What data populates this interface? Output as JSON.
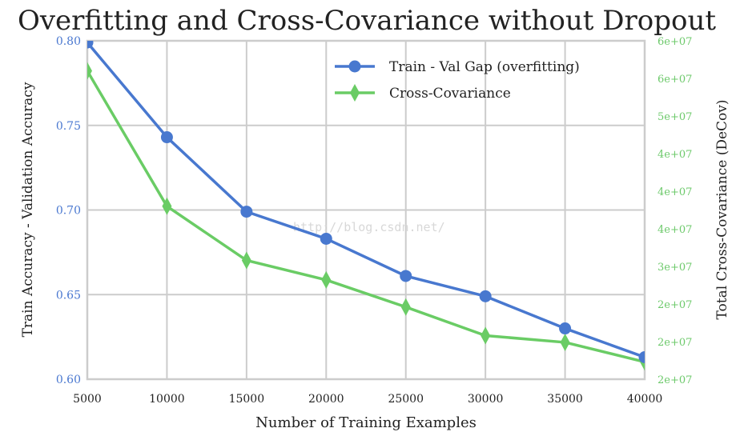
{
  "chart_data": {
    "type": "line",
    "title": "Overfitting and Cross-Covariance without Dropout",
    "xlabel": "Number of Training Examples",
    "ylabel": "Train Accuracy - Validation Accuracy",
    "ylabel_right": "Total Cross-Covariance (DeCov)",
    "x": [
      5000,
      10000,
      15000,
      20000,
      25000,
      30000,
      35000,
      40000
    ],
    "xlim": [
      5000,
      40000
    ],
    "ylim": [
      0.6,
      0.8
    ],
    "ylim_right": [
      15000000,
      60000000
    ],
    "xticks": [
      "5000",
      "10000",
      "15000",
      "20000",
      "25000",
      "30000",
      "35000",
      "40000"
    ],
    "yticks_left": [
      "0.60",
      "0.65",
      "0.70",
      "0.75",
      "0.80"
    ],
    "yticks_right": [
      "2e+07",
      "2e+07",
      "2e+07",
      "3e+07",
      "4e+07",
      "4e+07",
      "4e+07",
      "5e+07",
      "6e+07",
      "6e+07"
    ],
    "grid": true,
    "legend_position": "top-right",
    "series": [
      {
        "name": "Train - Val Gap (overfitting)",
        "axis": "left",
        "marker": "circle",
        "color": "#4878cf",
        "values": [
          0.799,
          0.743,
          0.699,
          0.683,
          0.661,
          0.649,
          0.63,
          0.613
        ]
      },
      {
        "name": "Cross-Covariance",
        "axis": "right",
        "marker": "diamond",
        "color": "#6acc65",
        "values": [
          56000000,
          38000000,
          30800000,
          28200000,
          24600000,
          20800000,
          19900000,
          17300000
        ]
      }
    ],
    "watermark": "http://blog.csdn.net/"
  }
}
